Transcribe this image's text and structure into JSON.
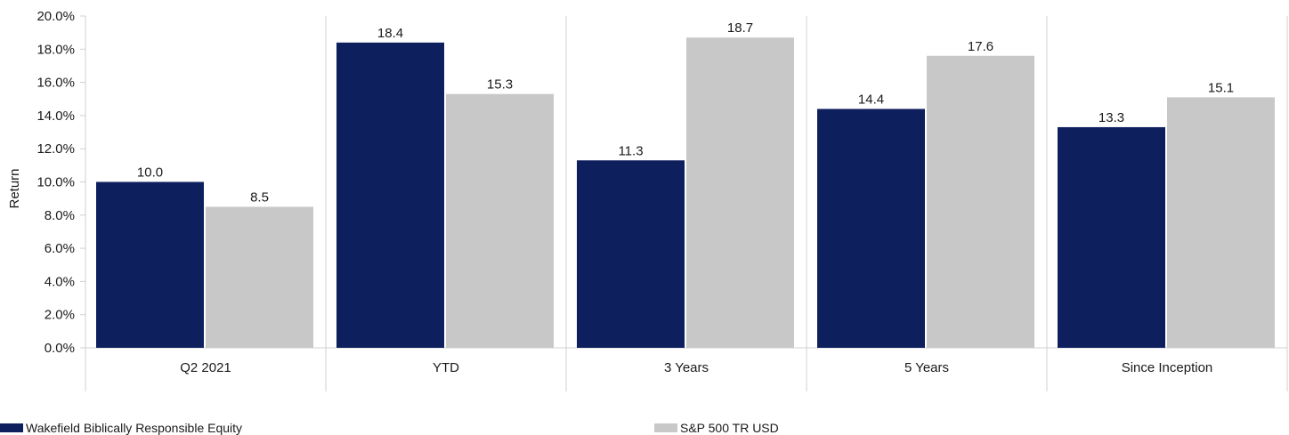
{
  "chart_data": {
    "type": "bar",
    "ylabel": "Return",
    "ylim": [
      0,
      20
    ],
    "ytick_values": [
      0,
      2,
      4,
      6,
      8,
      10,
      12,
      14,
      16,
      18,
      20
    ],
    "ytick_labels": [
      "0.0%",
      "2.0%",
      "4.0%",
      "6.0%",
      "8.0%",
      "10.0%",
      "12.0%",
      "14.0%",
      "16.0%",
      "18.0%",
      "20.0%"
    ],
    "categories": [
      "Q2 2021",
      "YTD",
      "3 Years",
      "5 Years",
      "Since Inception"
    ],
    "series": [
      {
        "name": "Wakefield Biblically Responsible Equity",
        "color": "#0e1f5e",
        "values": [
          10.0,
          18.4,
          11.3,
          14.4,
          13.3
        ],
        "value_labels": [
          "10.0",
          "18.4",
          "11.3",
          "14.4",
          "13.3"
        ]
      },
      {
        "name": "S&P 500 TR USD",
        "color": "#c8c8c8",
        "values": [
          8.5,
          15.3,
          18.7,
          17.6,
          15.1
        ],
        "value_labels": [
          "8.5",
          "15.3",
          "18.7",
          "17.6",
          "15.1"
        ]
      }
    ],
    "grid": "vertical category separators",
    "legend_position": "bottom"
  }
}
